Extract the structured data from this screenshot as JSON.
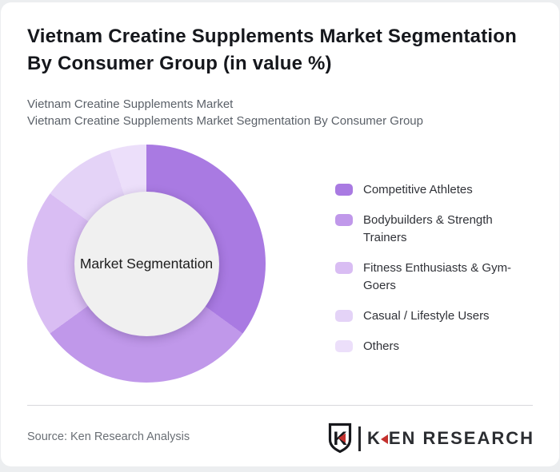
{
  "title": "Vietnam Creatine Supplements Market Segmentation By Consumer Group (in value %)",
  "subtitles": {
    "line1": "Vietnam Creatine Supplements Market",
    "line2": "Vietnam Creatine Supplements Market Segmentation By Consumer Group"
  },
  "chart_data": {
    "type": "pie",
    "variant": "donut",
    "title": "Vietnam Creatine Supplements Market Segmentation By Consumer Group (in value %)",
    "center_label": "Market Segmentation",
    "categories": [
      "Competitive Athletes",
      "Bodybuilders & Strength Trainers",
      "Fitness Enthusiasts & Gym-Goers",
      "Casual / Lifestyle Users",
      "Others"
    ],
    "values": [
      35,
      30,
      20,
      10,
      5
    ],
    "unit": "percent (estimated from arc angles; no data labels printed)",
    "colors": [
      "#a97ae2",
      "#c098ea",
      "#d9bdf3",
      "#e4d3f7",
      "#ecdffa"
    ],
    "start_angle_deg": 0,
    "direction": "clockwise",
    "inner_radius_ratio": 0.61,
    "inner_circle_color": "#f0f0f0",
    "legend_position": "right",
    "grid": false
  },
  "footer": {
    "source": "Source: Ken Research Analysis",
    "logo": {
      "badge_letter": "K",
      "brand_k": "K",
      "brand_rest": "EN RESEARCH",
      "accent_color": "#c4312e"
    }
  }
}
